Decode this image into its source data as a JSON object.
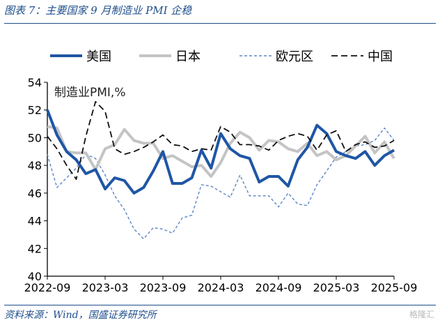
{
  "title": "图表 7：主要国家 9 月制造业 PMI 企稳",
  "source": "资料来源：Wind，国盛证券研究所",
  "watermark": "格隆汇",
  "chart_data": {
    "type": "line",
    "ylabel": "制造业PMI,%",
    "ylim": [
      40,
      54
    ],
    "yticks": [
      40,
      42,
      44,
      46,
      48,
      50,
      52,
      54
    ],
    "xticks": [
      "2022-09",
      "2023-03",
      "2023-09",
      "2024-03",
      "2024-09",
      "2025-03",
      "2025-09"
    ],
    "x": [
      "2022-09",
      "2022-10",
      "2022-11",
      "2022-12",
      "2023-01",
      "2023-02",
      "2023-03",
      "2023-04",
      "2023-05",
      "2023-06",
      "2023-07",
      "2023-08",
      "2023-09",
      "2023-10",
      "2023-11",
      "2023-12",
      "2024-01",
      "2024-02",
      "2024-03",
      "2024-04",
      "2024-05",
      "2024-06",
      "2024-07",
      "2024-08",
      "2024-09",
      "2024-10",
      "2024-11",
      "2024-12",
      "2025-01",
      "2025-02",
      "2025-03",
      "2025-04",
      "2025-05",
      "2025-06",
      "2025-07",
      "2025-08",
      "2025-09"
    ],
    "grid": false,
    "legend_position": "top",
    "series": [
      {
        "name": "美国",
        "color": "#1f56a5",
        "style": "solid-thick",
        "values": [
          52.0,
          50.2,
          49.0,
          48.4,
          47.4,
          47.7,
          46.3,
          47.1,
          46.9,
          46.0,
          46.4,
          47.6,
          49.0,
          46.7,
          46.7,
          47.1,
          49.1,
          47.8,
          50.3,
          49.2,
          48.7,
          48.5,
          46.8,
          47.2,
          47.2,
          46.5,
          48.4,
          49.3,
          50.9,
          50.3,
          49.0,
          48.7,
          48.5,
          49.0,
          48.0,
          48.7,
          49.1
        ]
      },
      {
        "name": "日本",
        "color": "#c4c4c4",
        "style": "solid-thick",
        "values": [
          50.8,
          50.7,
          49.0,
          48.9,
          48.9,
          47.7,
          49.2,
          49.5,
          50.6,
          49.8,
          49.6,
          49.6,
          48.5,
          48.7,
          48.3,
          47.9,
          48.0,
          47.2,
          48.2,
          49.6,
          50.4,
          50.0,
          49.1,
          49.8,
          49.7,
          49.2,
          49.0,
          49.6,
          48.7,
          49.0,
          48.4,
          48.7,
          49.4,
          50.1,
          48.9,
          49.7,
          48.5
        ]
      },
      {
        "name": "欧元区",
        "color": "#5b87c6",
        "style": "dashed-thin",
        "values": [
          48.8,
          46.4,
          47.1,
          47.8,
          48.8,
          48.5,
          47.3,
          45.8,
          44.8,
          43.4,
          42.7,
          43.5,
          43.4,
          43.1,
          44.2,
          44.4,
          46.6,
          46.5,
          46.1,
          45.7,
          47.3,
          45.8,
          45.8,
          45.8,
          45.0,
          46.0,
          45.2,
          45.1,
          46.6,
          47.6,
          48.6,
          49.0,
          49.4,
          49.5,
          49.8,
          50.7,
          49.8
        ]
      },
      {
        "name": "中国",
        "color": "#111111",
        "style": "dashed-medium",
        "values": [
          50.1,
          49.2,
          48.0,
          47.0,
          50.1,
          52.6,
          51.9,
          49.2,
          48.8,
          49.0,
          49.3,
          49.7,
          50.2,
          49.5,
          49.4,
          49.0,
          49.2,
          49.1,
          50.8,
          50.4,
          49.5,
          49.5,
          49.4,
          49.1,
          49.8,
          50.1,
          50.3,
          50.1,
          49.1,
          50.2,
          50.5,
          49.0,
          49.5,
          49.7,
          49.3,
          49.4,
          49.8
        ]
      }
    ]
  }
}
